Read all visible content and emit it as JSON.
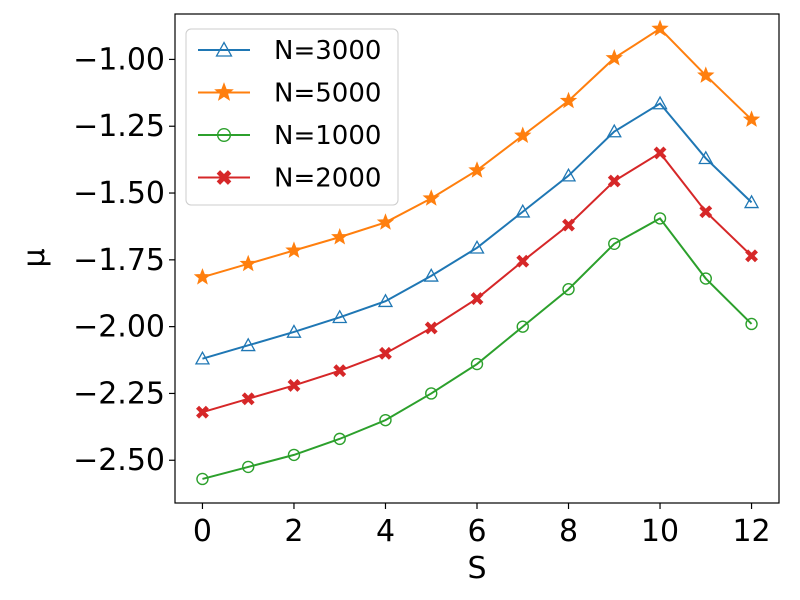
{
  "chart_data": {
    "type": "line",
    "title": "",
    "xlabel": "S",
    "ylabel": "μ",
    "xlim": [
      -0.6,
      12.6
    ],
    "ylim": [
      -2.66,
      -0.83
    ],
    "xticks": [
      0,
      2,
      4,
      6,
      8,
      10,
      12
    ],
    "xtick_labels": [
      "0",
      "2",
      "4",
      "6",
      "8",
      "10",
      "12"
    ],
    "yticks": [
      -2.5,
      -2.25,
      -2.0,
      -1.75,
      -1.5,
      -1.25,
      -1.0
    ],
    "ytick_labels": [
      "−2.50",
      "−2.25",
      "−2.00",
      "−1.75",
      "−1.50",
      "−1.25",
      "−1.00"
    ],
    "grid": false,
    "legend_position": "top-left",
    "x": [
      0,
      1,
      2,
      3,
      4,
      5,
      6,
      7,
      8,
      9,
      10,
      11,
      12
    ],
    "series": [
      {
        "name": "N=3000",
        "color": "#1f77b4",
        "marker": "triangle-open",
        "values": [
          -2.12,
          -2.07,
          -2.02,
          -1.965,
          -1.905,
          -1.81,
          -1.705,
          -1.57,
          -1.435,
          -1.27,
          -1.165,
          -1.37,
          -1.535
        ]
      },
      {
        "name": "N=5000",
        "color": "#ff7f0e",
        "marker": "star",
        "values": [
          -1.815,
          -1.765,
          -1.715,
          -1.665,
          -1.61,
          -1.52,
          -1.415,
          -1.285,
          -1.155,
          -0.995,
          -0.885,
          -1.06,
          -1.225
        ]
      },
      {
        "name": "N=1000",
        "color": "#2ca02c",
        "marker": "circle-open",
        "values": [
          -2.57,
          -2.525,
          -2.48,
          -2.42,
          -2.35,
          -2.25,
          -2.14,
          -2.0,
          -1.86,
          -1.69,
          -1.595,
          -1.82,
          -1.99
        ]
      },
      {
        "name": "N=2000",
        "color": "#d62728",
        "marker": "x-filled",
        "values": [
          -2.32,
          -2.27,
          -2.22,
          -2.165,
          -2.1,
          -2.005,
          -1.895,
          -1.755,
          -1.62,
          -1.455,
          -1.35,
          -1.57,
          -1.735
        ]
      }
    ]
  }
}
